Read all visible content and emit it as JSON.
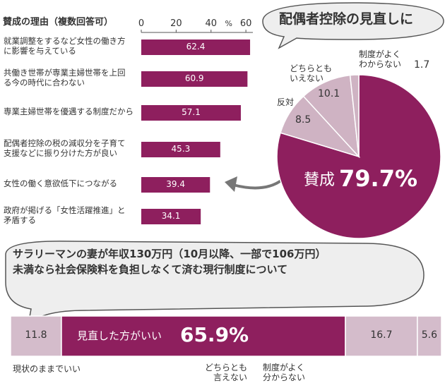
{
  "chart_data": [
    {
      "type": "bar",
      "orientation": "horizontal",
      "title": "賛成の理由（複数回答可）",
      "categories": [
        "就業調整をするなど女性の働き方\nに影響を与えている",
        "共働き世帯が専業主婦世帯を上回\nる今の時代に合わない",
        "専業主婦世帯を優遇する制度だから",
        "配偶者控除の税の減収分を子育て\n支援などに振り分けた方が良い",
        "女性の働く意欲低下につながる",
        "政府が掲げる「女性活躍推進」と\n矛盾する"
      ],
      "values": [
        62.4,
        60.9,
        57.1,
        45.3,
        39.4,
        34.1
      ],
      "color": "#8e1f5e",
      "xlim": [
        0,
        64
      ],
      "xticks": [
        0,
        20,
        40,
        60
      ],
      "unit": "%"
    },
    {
      "type": "pie",
      "title": "配偶者控除の見直しに",
      "categories": [
        "賛成",
        "反対",
        "どちらとも\nいえない",
        "制度がよく\nわからない"
      ],
      "values": [
        79.7,
        8.5,
        10.1,
        1.7
      ],
      "value_labels": [
        "79.7%",
        "8.5",
        "10.1",
        "1.7"
      ],
      "colors": [
        "#8e1f5e",
        "#cfb3c3",
        "#cfb3c3",
        "#cfb3c3"
      ]
    },
    {
      "type": "stacked_bar",
      "title": "サラリーマンの妻が年収130万円（10月以降、一部で106万円）未満なら社会保険料を負担しなくて済む現行制度について",
      "categories": [
        "現状のままでいい",
        "見直した方がいい",
        "どちらとも\n言えない",
        "制度がよく\n分からない"
      ],
      "values": [
        11.8,
        65.9,
        16.7,
        5.6
      ],
      "value_labels": [
        "11.8",
        "65.9%",
        "16.7",
        "5.6"
      ],
      "colors": [
        "#d4bccb",
        "#8e1f5e",
        "#d4bccb",
        "#d4bccb"
      ]
    }
  ]
}
